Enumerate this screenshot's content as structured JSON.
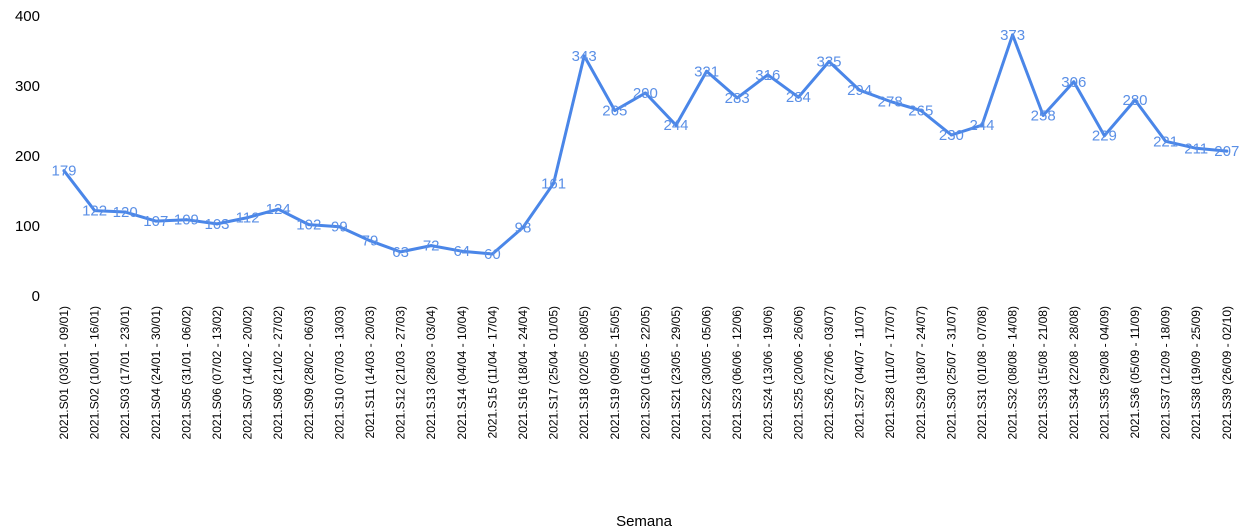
{
  "chart_data": {
    "type": "line",
    "title": "",
    "xlabel": "Semana",
    "ylabel": "",
    "ylim": [
      0,
      400
    ],
    "yticks": [
      "0",
      "100",
      "200",
      "300",
      "400"
    ],
    "grid": false,
    "legend": "none",
    "line_color": "#4a86e8",
    "label_color": "#5a8fe6",
    "categories": [
      "2021.S01 (03/01 - 09/01)",
      "2021.S02 (10/01 - 16/01)",
      "2021.S03 (17/01 - 23/01)",
      "2021.S04 (24/01 - 30/01)",
      "2021.S05 (31/01 - 06/02)",
      "2021.S06 (07/02 - 13/02)",
      "2021.S07 (14/02 - 20/02)",
      "2021.S08 (21/02 - 27/02)",
      "2021.S09 (28/02 - 06/03)",
      "2021.S10 (07/03 - 13/03)",
      "2021.S11 (14/03 - 20/03)",
      "2021.S12 (21/03 - 27/03)",
      "2021.S13 (28/03 - 03/04)",
      "2021.S14 (04/04 - 10/04)",
      "2021.S15 (11/04 - 17/04)",
      "2021.S16 (18/04 - 24/04)",
      "2021.S17 (25/04 - 01/05)",
      "2021.S18 (02/05 - 08/05)",
      "2021.S19 (09/05 - 15/05)",
      "2021.S20 (16/05 - 22/05)",
      "2021.S21 (23/05 - 29/05)",
      "2021.S22 (30/05 - 05/06)",
      "2021.S23 (06/06 - 12/06)",
      "2021.S24 (13/06 - 19/06)",
      "2021.S25 (20/06 - 26/06)",
      "2021.S26 (27/06 - 03/07)",
      "2021.S27 (04/07 - 11/07)",
      "2021.S28 (11/07 - 17/07)",
      "2021.S29 (18/07 - 24/07)",
      "2021.S30 (25/07 - 31/07)",
      "2021.S31 (01/08 - 07/08)",
      "2021.S32 (08/08 - 14/08)",
      "2021.S33 (15/08 - 21/08)",
      "2021.S34 (22/08 - 28/08)",
      "2021.S35 (29/08 - 04/09)",
      "2021.S36 (05/09 - 11/09)",
      "2021.S37 (12/09 - 18/09)",
      "2021.S38 (19/09 - 25/09)",
      "2021.S39 (26/09 - 02/10)"
    ],
    "values": [
      179,
      122,
      120,
      107,
      109,
      103,
      112,
      124,
      102,
      99,
      79,
      63,
      72,
      64,
      60,
      98,
      161,
      343,
      265,
      290,
      244,
      321,
      283,
      316,
      284,
      335,
      294,
      278,
      265,
      230,
      244,
      373,
      258,
      306,
      229,
      280,
      221,
      211,
      207
    ]
  }
}
